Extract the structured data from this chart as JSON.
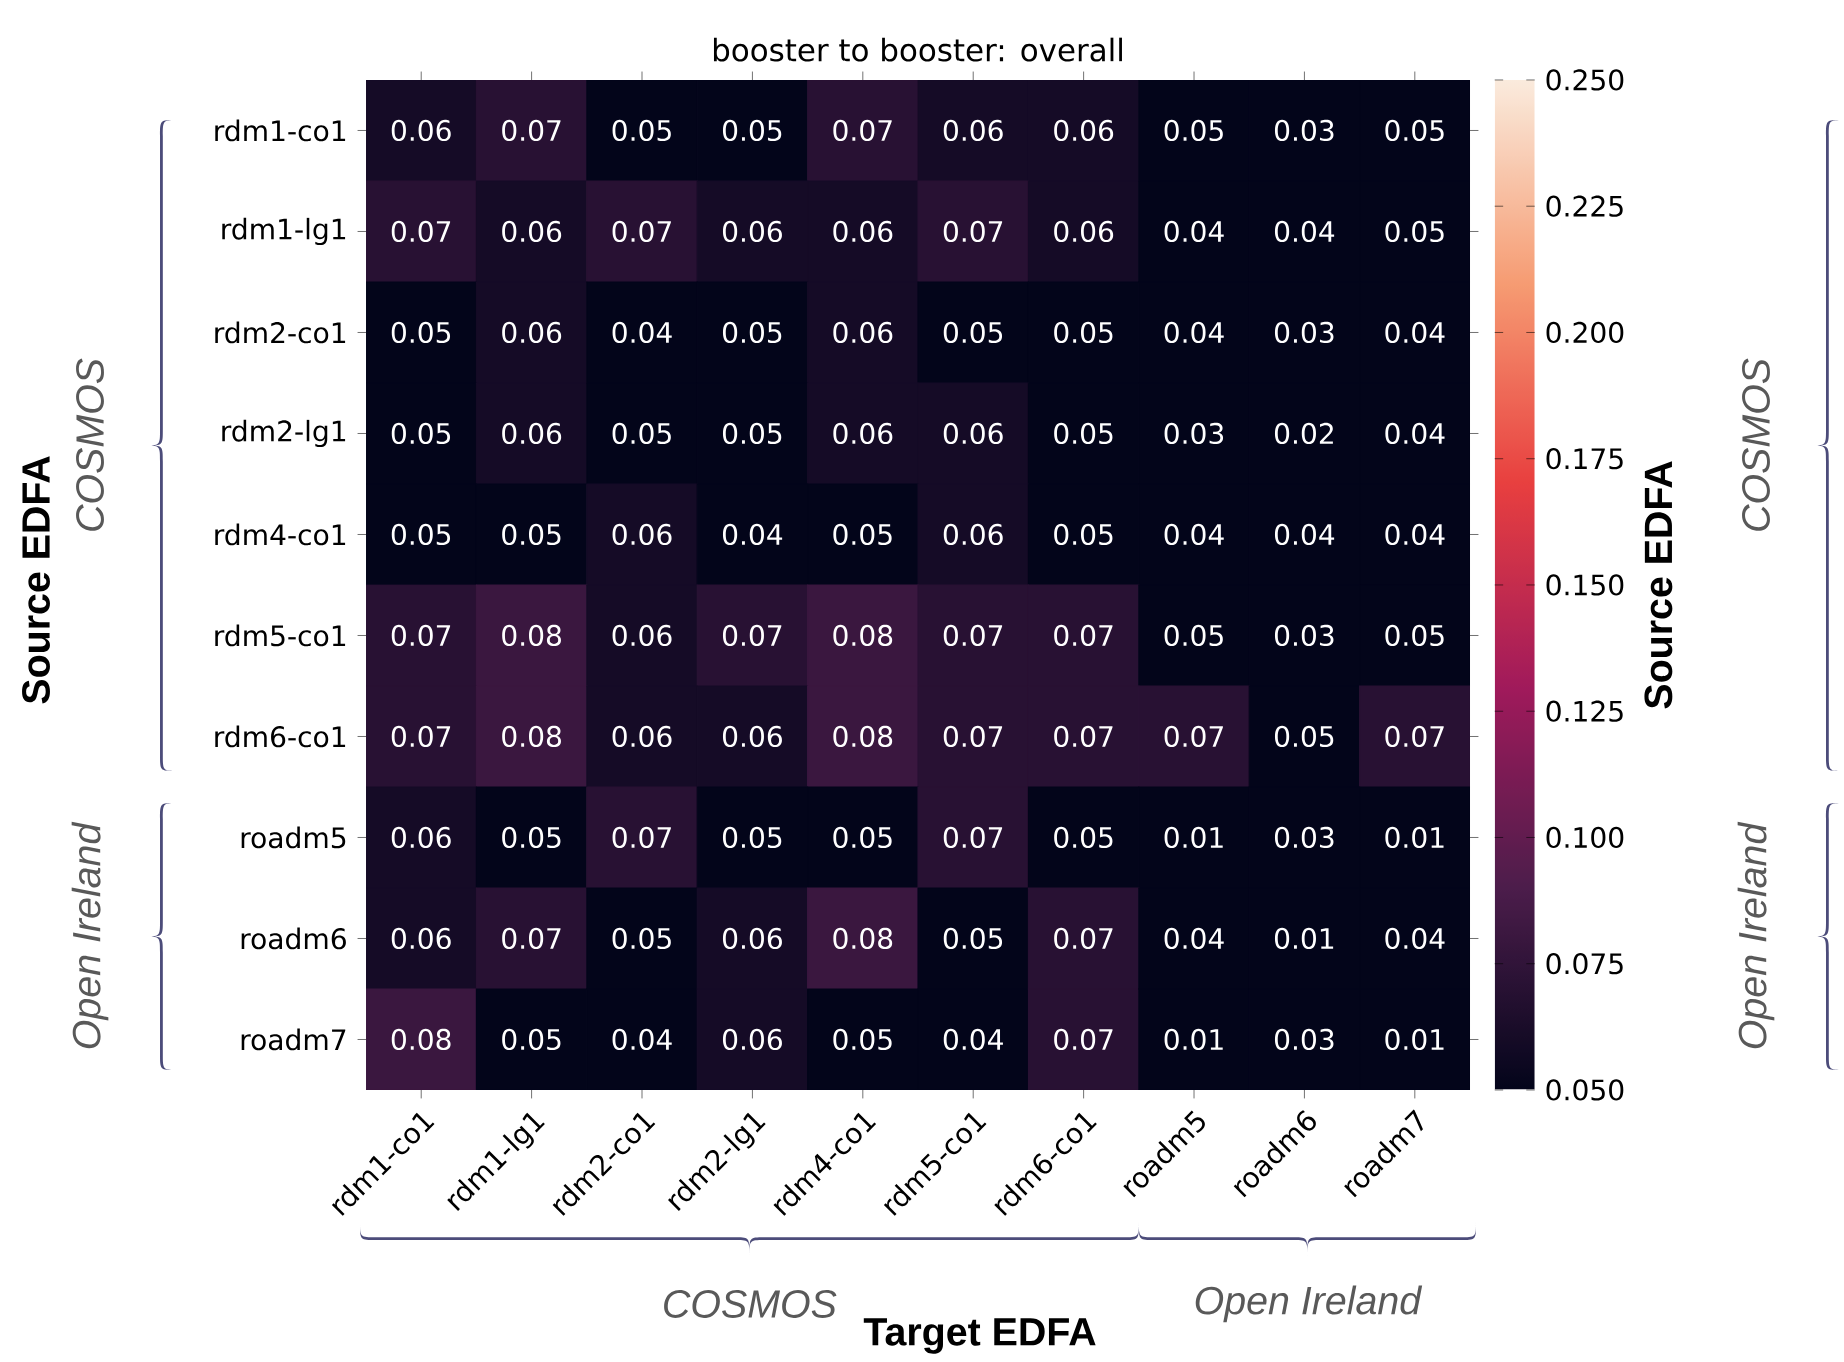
{
  "chart_data": {
    "type": "heatmap",
    "title": "booster to booster: overall",
    "xlabel": "Target EDFA",
    "ylabel": "Source EDFA",
    "clabel": "Source EDFA",
    "categories": [
      "rdm1-co1",
      "rdm1-lg1",
      "rdm2-co1",
      "rdm2-lg1",
      "rdm4-co1",
      "rdm5-co1",
      "rdm6-co1",
      "roadm5",
      "roadm6",
      "roadm7"
    ],
    "y_categories": [
      "rdm1-co1",
      "rdm1-lg1",
      "rdm2-co1",
      "rdm2-lg1",
      "rdm4-co1",
      "rdm5-co1",
      "rdm6-co1",
      "roadm5",
      "roadm6",
      "roadm7"
    ],
    "cells": [
      [
        0.06,
        0.07,
        0.05,
        0.05,
        0.07,
        0.06,
        0.06,
        0.05,
        0.03,
        0.05
      ],
      [
        0.07,
        0.06,
        0.07,
        0.06,
        0.06,
        0.07,
        0.06,
        0.04,
        0.04,
        0.05
      ],
      [
        0.05,
        0.06,
        0.04,
        0.05,
        0.06,
        0.05,
        0.05,
        0.04,
        0.03,
        0.04
      ],
      [
        0.05,
        0.06,
        0.05,
        0.05,
        0.06,
        0.06,
        0.05,
        0.03,
        0.02,
        0.04
      ],
      [
        0.05,
        0.05,
        0.06,
        0.04,
        0.05,
        0.06,
        0.05,
        0.04,
        0.04,
        0.04
      ],
      [
        0.07,
        0.08,
        0.06,
        0.07,
        0.08,
        0.07,
        0.07,
        0.05,
        0.03,
        0.05
      ],
      [
        0.07,
        0.08,
        0.06,
        0.06,
        0.08,
        0.07,
        0.07,
        0.07,
        0.05,
        0.07
      ],
      [
        0.06,
        0.05,
        0.07,
        0.05,
        0.05,
        0.07,
        0.05,
        0.01,
        0.03,
        0.01
      ],
      [
        0.06,
        0.07,
        0.05,
        0.06,
        0.08,
        0.05,
        0.07,
        0.04,
        0.01,
        0.04
      ],
      [
        0.08,
        0.05,
        0.04,
        0.06,
        0.05,
        0.04,
        0.07,
        0.01,
        0.03,
        0.01
      ]
    ],
    "data_labels": true,
    "clim": [
      0.05,
      0.25
    ],
    "cticks": [
      {
        "value": 0.05,
        "label": "0.050"
      },
      {
        "value": 0.075,
        "label": "0.075"
      },
      {
        "value": 0.1,
        "label": "0.100"
      },
      {
        "value": 0.125,
        "label": "0.125"
      },
      {
        "value": 0.15,
        "label": "0.150"
      },
      {
        "value": 0.175,
        "label": "0.175"
      },
      {
        "value": 0.2,
        "label": "0.200"
      },
      {
        "value": 0.225,
        "label": "0.225"
      },
      {
        "value": 0.25,
        "label": "0.250"
      }
    ],
    "annotations": [
      "COSMOS",
      "Open Ireland",
      "COSMOS",
      "Open Ireland",
      "COSMOS",
      "Open Ireland"
    ]
  }
}
